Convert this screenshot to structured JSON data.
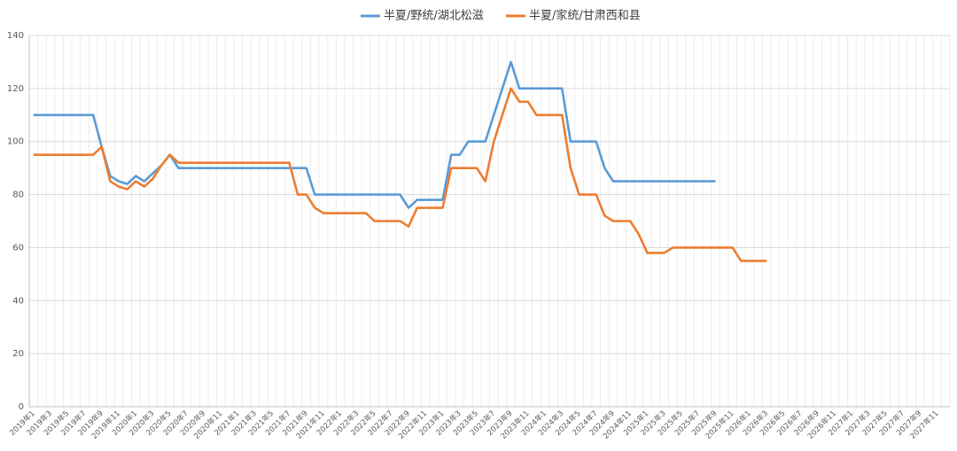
{
  "chart_data": {
    "type": "line",
    "categories": [
      "2019年1",
      null,
      "2019年3",
      null,
      "2019年5",
      null,
      "2019年7",
      null,
      "2019年9",
      null,
      "2019年11",
      null,
      "2020年1",
      null,
      "2020年3",
      null,
      "2020年5",
      null,
      "2020年7",
      null,
      "2020年9",
      null,
      "2020年11",
      null,
      "2021年1",
      null,
      "2021年3",
      null,
      "2021年5",
      null,
      "2021年7",
      null,
      "2021年9",
      null,
      "2021年11",
      null,
      "2022年1",
      null,
      "2022年3",
      null,
      "2022年5",
      null,
      "2022年7",
      null,
      "2022年9",
      null,
      "2022年11",
      null,
      "2023年1",
      null,
      "2023年3",
      null,
      "2023年5",
      null,
      "2023年7",
      null,
      "2023年9",
      null,
      "2023年11",
      null,
      "2024年1",
      null,
      "2024年3",
      null,
      "2024年5",
      null,
      "2024年7",
      null,
      "2024年9",
      null,
      "2024年11",
      null,
      "2025年1",
      null,
      "2025年3",
      null,
      "2025年5",
      null,
      "2025年7",
      null,
      "2025年9",
      null,
      "2025年11",
      null,
      "2026年1",
      null,
      "2026年3",
      null,
      "2026年5",
      null,
      "2026年7",
      null,
      "2026年9",
      null,
      "2026年11",
      null,
      "2027年1",
      null,
      "2027年3",
      null,
      "2027年5",
      null,
      "2027年7",
      null,
      "2027年9",
      null,
      "2027年11",
      null
    ],
    "series": [
      {
        "name": "半夏/野统/湖北松滋",
        "color": "#5b9bd5",
        "values": [
          110,
          110,
          110,
          110,
          110,
          110,
          110,
          110,
          98,
          87,
          85,
          84,
          87,
          85,
          88,
          91,
          95,
          90,
          90,
          90,
          90,
          90,
          90,
          90,
          90,
          90,
          90,
          90,
          90,
          90,
          90,
          90,
          90,
          80,
          80,
          80,
          80,
          80,
          80,
          80,
          80,
          80,
          80,
          80,
          75,
          78,
          78,
          78,
          78,
          95,
          95,
          100,
          100,
          100,
          110,
          120,
          130,
          120,
          120,
          120,
          120,
          120,
          120,
          100,
          100,
          100,
          100,
          90,
          85,
          85,
          85,
          85,
          85,
          85,
          85,
          85,
          85,
          85,
          85,
          85,
          85,
          null,
          null,
          null,
          null,
          null,
          null,
          null,
          null,
          null,
          null,
          null,
          null,
          null,
          null,
          null,
          null,
          null,
          null,
          null,
          null,
          null,
          null,
          null,
          null,
          null,
          null,
          null
        ]
      },
      {
        "name": "半夏/家统/甘肃西和县",
        "color": "#ed7d31",
        "values": [
          95,
          95,
          95,
          95,
          95,
          95,
          95,
          95,
          98,
          85,
          83,
          82,
          85,
          83,
          86,
          91,
          95,
          92,
          92,
          92,
          92,
          92,
          92,
          92,
          92,
          92,
          92,
          92,
          92,
          92,
          92,
          80,
          80,
          75,
          73,
          73,
          73,
          73,
          73,
          73,
          70,
          70,
          70,
          70,
          68,
          75,
          75,
          75,
          75,
          90,
          90,
          90,
          90,
          85,
          100,
          110,
          120,
          115,
          115,
          110,
          110,
          110,
          110,
          90,
          80,
          80,
          80,
          72,
          70,
          70,
          70,
          65,
          58,
          58,
          58,
          60,
          60,
          60,
          60,
          60,
          60,
          60,
          60,
          55,
          55,
          55,
          55,
          null,
          null,
          null,
          null,
          null,
          null,
          null,
          null,
          null,
          null,
          null,
          null,
          null,
          null,
          null,
          null,
          null,
          null,
          null,
          null,
          null
        ]
      }
    ],
    "ylim": [
      0,
      140
    ],
    "yticks": [
      0,
      20,
      40,
      60,
      80,
      100,
      120,
      140
    ],
    "grid": true,
    "legend": "top"
  }
}
